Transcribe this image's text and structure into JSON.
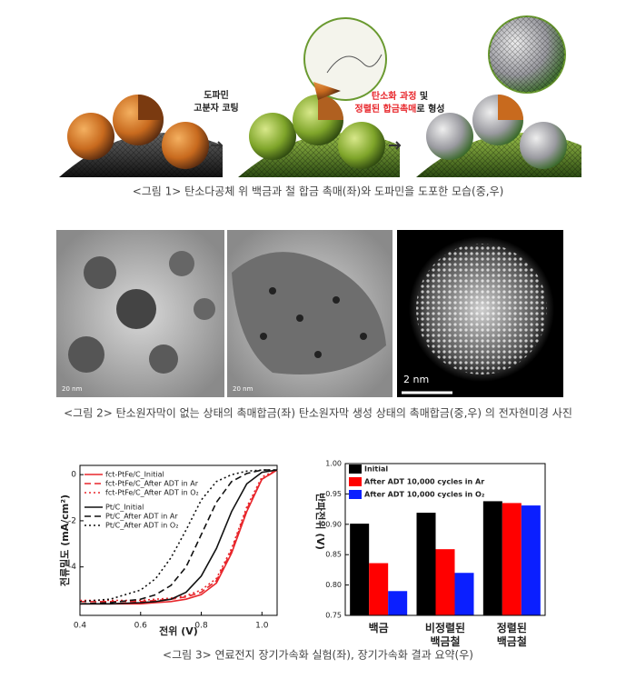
{
  "figure1": {
    "step1_label": [
      "도파민",
      "고분자 코팅"
    ],
    "step2_label": {
      "line1": [
        {
          "text": "탄소화 과정",
          "color": "#e8262b"
        },
        {
          "text": " 및",
          "color": "#222222"
        }
      ],
      "line2": [
        {
          "text": "정렬된 합금촉매",
          "color": "#e8262b"
        },
        {
          "text": "로 형성",
          "color": "#222222"
        }
      ]
    },
    "caption": "<그림 1> 탄소다공체 위 백금과 철 합금 촉매(좌)와 도파민을 도포한 모습(중,우)"
  },
  "figure2": {
    "scale_labels": [
      "20 nm",
      "20 nm",
      "2 nm"
    ],
    "caption": "<그림 2> 탄소원자막이 없는 상태의 촉매합금(좌) 탄소원자막 생성 상태의 촉매합금(중,우) 의 전자현미경 사진"
  },
  "chart_data": [
    {
      "type": "line",
      "xlabel": "전위 (V)",
      "ylabel": "전류밀도 (mA/cm²)",
      "x": [
        0.4,
        0.5,
        0.6,
        0.65,
        0.7,
        0.75,
        0.8,
        0.85,
        0.9,
        0.95,
        1.0,
        1.05
      ],
      "xlim": [
        0.4,
        1.05
      ],
      "xticks": [
        0.4,
        0.6,
        0.8,
        {
          "value": 1.0,
          "label": "1.0"
        }
      ],
      "ylim": [
        -6.1,
        0.4
      ],
      "yticks": [
        0,
        -2,
        -4
      ],
      "series": [
        {
          "name": "fct-PtFe/C_Initial",
          "color": "#e8262b",
          "style": "solid",
          "values": [
            -5.6,
            -5.6,
            -5.6,
            -5.55,
            -5.5,
            -5.4,
            -5.2,
            -4.7,
            -3.4,
            -1.6,
            -0.2,
            0.2
          ]
        },
        {
          "name": "fct-PtFe/C_After ADT in Ar",
          "color": "#e8262b",
          "style": "dashed",
          "values": [
            -5.5,
            -5.5,
            -5.5,
            -5.45,
            -5.4,
            -5.3,
            -5.1,
            -4.6,
            -3.3,
            -1.5,
            -0.2,
            0.2
          ]
        },
        {
          "name": "fct-PtFe/C_After ADT in O₂",
          "color": "#e8262b",
          "style": "dotted",
          "values": [
            -5.45,
            -5.45,
            -5.45,
            -5.4,
            -5.35,
            -5.25,
            -5.0,
            -4.5,
            -3.2,
            -1.4,
            -0.1,
            0.2
          ]
        },
        {
          "name": "Pt/C_Initial",
          "color": "#111111",
          "style": "solid",
          "values": [
            -5.6,
            -5.6,
            -5.55,
            -5.5,
            -5.4,
            -5.1,
            -4.4,
            -3.2,
            -1.6,
            -0.4,
            0.1,
            0.2
          ]
        },
        {
          "name": "Pt/C_After ADT in Ar",
          "color": "#111111",
          "style": "dashed",
          "values": [
            -5.6,
            -5.55,
            -5.4,
            -5.2,
            -4.8,
            -4.0,
            -2.6,
            -1.2,
            -0.3,
            0.05,
            0.2,
            0.2
          ]
        },
        {
          "name": "Pt/C_After ADT in O₂",
          "color": "#111111",
          "style": "dotted",
          "values": [
            -5.5,
            -5.4,
            -5.0,
            -4.5,
            -3.6,
            -2.4,
            -1.1,
            -0.3,
            0.0,
            0.15,
            0.2,
            0.2
          ]
        }
      ]
    },
    {
      "type": "bar",
      "ylabel": "반파전위 (V)",
      "categories": [
        "백금",
        "비정렬된 백금철",
        "정렬된 백금철"
      ],
      "ylim": [
        0.75,
        1.0
      ],
      "yticks": [
        0.75,
        {
          "value": 0.8,
          "label": "0.80"
        },
        0.85,
        {
          "value": 0.9,
          "label": "0.90"
        },
        0.95,
        {
          "value": 1.0,
          "label": "1.00"
        }
      ],
      "series": [
        {
          "name": "Initial",
          "color": "#000000",
          "values": [
            0.901,
            0.919,
            0.938
          ]
        },
        {
          "name": "After ADT 10,000 cycles in Ar",
          "color": "#ff0000",
          "values": [
            0.836,
            0.859,
            0.935
          ]
        },
        {
          "name": "After ADT 10,000 cycles in O₂",
          "color": "#0b1fff",
          "values": [
            0.79,
            0.82,
            0.931
          ]
        }
      ]
    }
  ],
  "figure3": {
    "caption": "<그림 3> 연료전지 장기가속화 실험(좌), 장기가속화 결과 요약(우)"
  }
}
